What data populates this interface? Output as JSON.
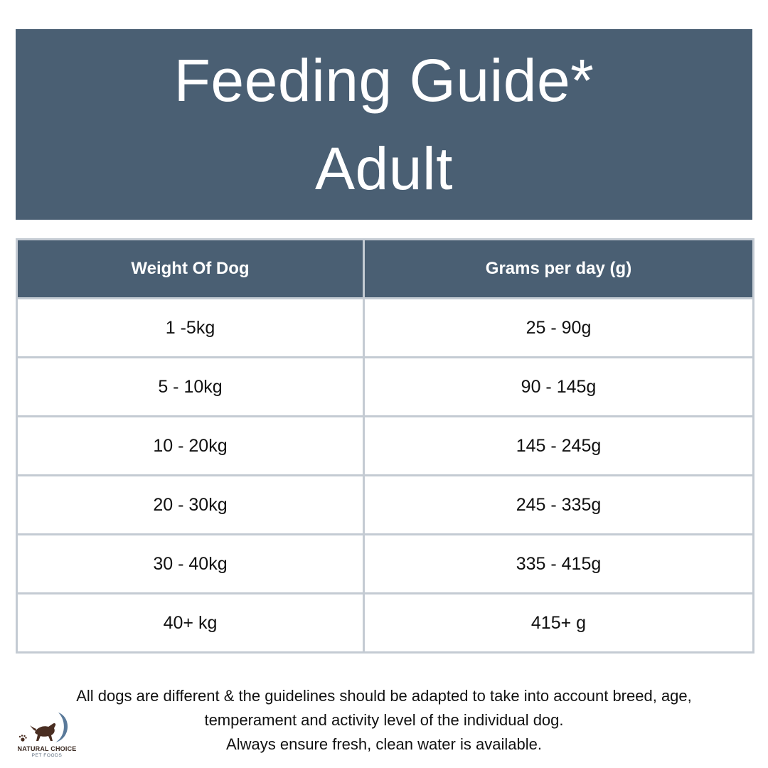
{
  "banner": {
    "title": "Feeding Guide*",
    "subtitle": "Adult"
  },
  "table": {
    "headers": [
      "Weight Of Dog",
      "Grams per day (g)"
    ],
    "rows": [
      [
        "1 -5kg",
        "25 - 90g"
      ],
      [
        "5 - 10kg",
        "90 - 145g"
      ],
      [
        "10 - 20kg",
        "145 - 245g"
      ],
      [
        "20 - 30kg",
        "245 - 335g"
      ],
      [
        "30 - 40kg",
        "335 - 415g"
      ],
      [
        "40+ kg",
        "415+ g"
      ]
    ]
  },
  "footnote": {
    "line1": "All dogs are different & the guidelines should be adapted to take into account breed, age,",
    "line2": "temperament and activity level of the individual dog.",
    "line3": "Always ensure fresh, clean water is available."
  },
  "logo": {
    "brand": "NATURAL CHOICE",
    "sub": "PET FOODS"
  },
  "colors": {
    "banner_bg": "#4a5f73",
    "table_border": "#c4cbd3"
  }
}
